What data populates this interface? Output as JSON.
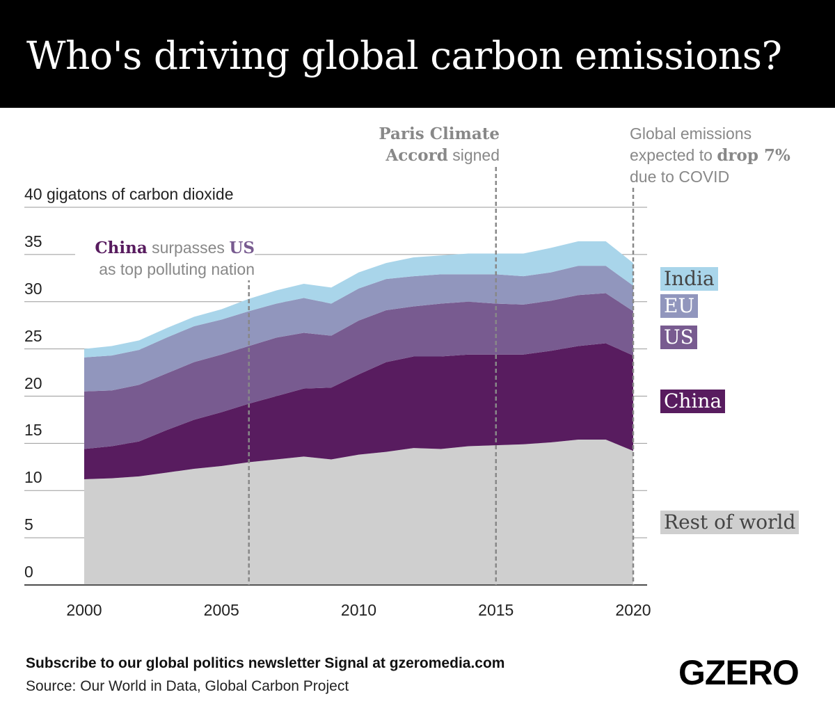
{
  "title": "Who's driving global carbon emissions?",
  "chart_data": {
    "type": "area",
    "stacked": true,
    "ylabel": "40 gigatons of carbon dioxide",
    "ylim": [
      0,
      40
    ],
    "yticks": [
      "0",
      "5",
      "10",
      "15",
      "20",
      "25",
      "30",
      "35"
    ],
    "xlim": [
      2000,
      2020
    ],
    "xticks": [
      "2000",
      "2005",
      "2010",
      "2015",
      "2020"
    ],
    "grid": true,
    "x": [
      2000,
      2001,
      2002,
      2003,
      2004,
      2005,
      2006,
      2007,
      2008,
      2009,
      2010,
      2011,
      2012,
      2013,
      2014,
      2015,
      2016,
      2017,
      2018,
      2019,
      2020
    ],
    "series": [
      {
        "name": "Rest of world",
        "color": "#cfcfcf",
        "text_color": "#444444",
        "values": [
          11.2,
          11.3,
          11.5,
          11.9,
          12.3,
          12.6,
          13.0,
          13.3,
          13.6,
          13.3,
          13.8,
          14.1,
          14.5,
          14.4,
          14.7,
          14.8,
          14.9,
          15.1,
          15.4,
          15.4,
          14.2
        ]
      },
      {
        "name": "China",
        "color": "#581c5f",
        "text_color": "#ffffff",
        "values": [
          3.2,
          3.4,
          3.7,
          4.5,
          5.2,
          5.7,
          6.2,
          6.7,
          7.2,
          7.6,
          8.5,
          9.5,
          9.7,
          9.8,
          9.7,
          9.6,
          9.5,
          9.7,
          9.9,
          10.2,
          10.1
        ]
      },
      {
        "name": "US",
        "color": "#785b90",
        "text_color": "#ffffff",
        "values": [
          6.1,
          5.9,
          6.0,
          6.0,
          6.1,
          6.1,
          6.1,
          6.2,
          5.9,
          5.5,
          5.7,
          5.5,
          5.3,
          5.6,
          5.6,
          5.4,
          5.3,
          5.3,
          5.4,
          5.3,
          4.7
        ]
      },
      {
        "name": "EU",
        "color": "#9196bd",
        "text_color": "#ffffff",
        "values": [
          3.6,
          3.7,
          3.7,
          3.8,
          3.8,
          3.7,
          3.7,
          3.6,
          3.7,
          3.4,
          3.4,
          3.3,
          3.2,
          3.1,
          2.9,
          3.1,
          3.0,
          3.0,
          3.1,
          2.9,
          2.7
        ]
      },
      {
        "name": "India",
        "color": "#a9d5ea",
        "text_color": "#444444",
        "values": [
          0.9,
          1.0,
          1.0,
          1.0,
          1.0,
          1.1,
          1.3,
          1.4,
          1.5,
          1.7,
          1.7,
          1.7,
          2.0,
          2.0,
          2.2,
          2.2,
          2.4,
          2.6,
          2.6,
          2.6,
          2.4
        ]
      }
    ],
    "annotations": [
      {
        "x": 2006,
        "parts": [
          "China",
          " surpasses ",
          "US",
          "as top polluting nation"
        ]
      },
      {
        "x": 2015,
        "parts": [
          "Paris Climate",
          "Accord",
          " signed"
        ]
      },
      {
        "x": 2020,
        "parts": [
          "Global emissions",
          "expected to ",
          "drop 7%",
          "due to COVID"
        ]
      }
    ]
  },
  "footer": {
    "subscribe": "Subscribe to our global politics newsletter Signal at gzeromedia.com",
    "source": "Source: Our World in Data, Global Carbon Project",
    "logo": "GZERO"
  }
}
